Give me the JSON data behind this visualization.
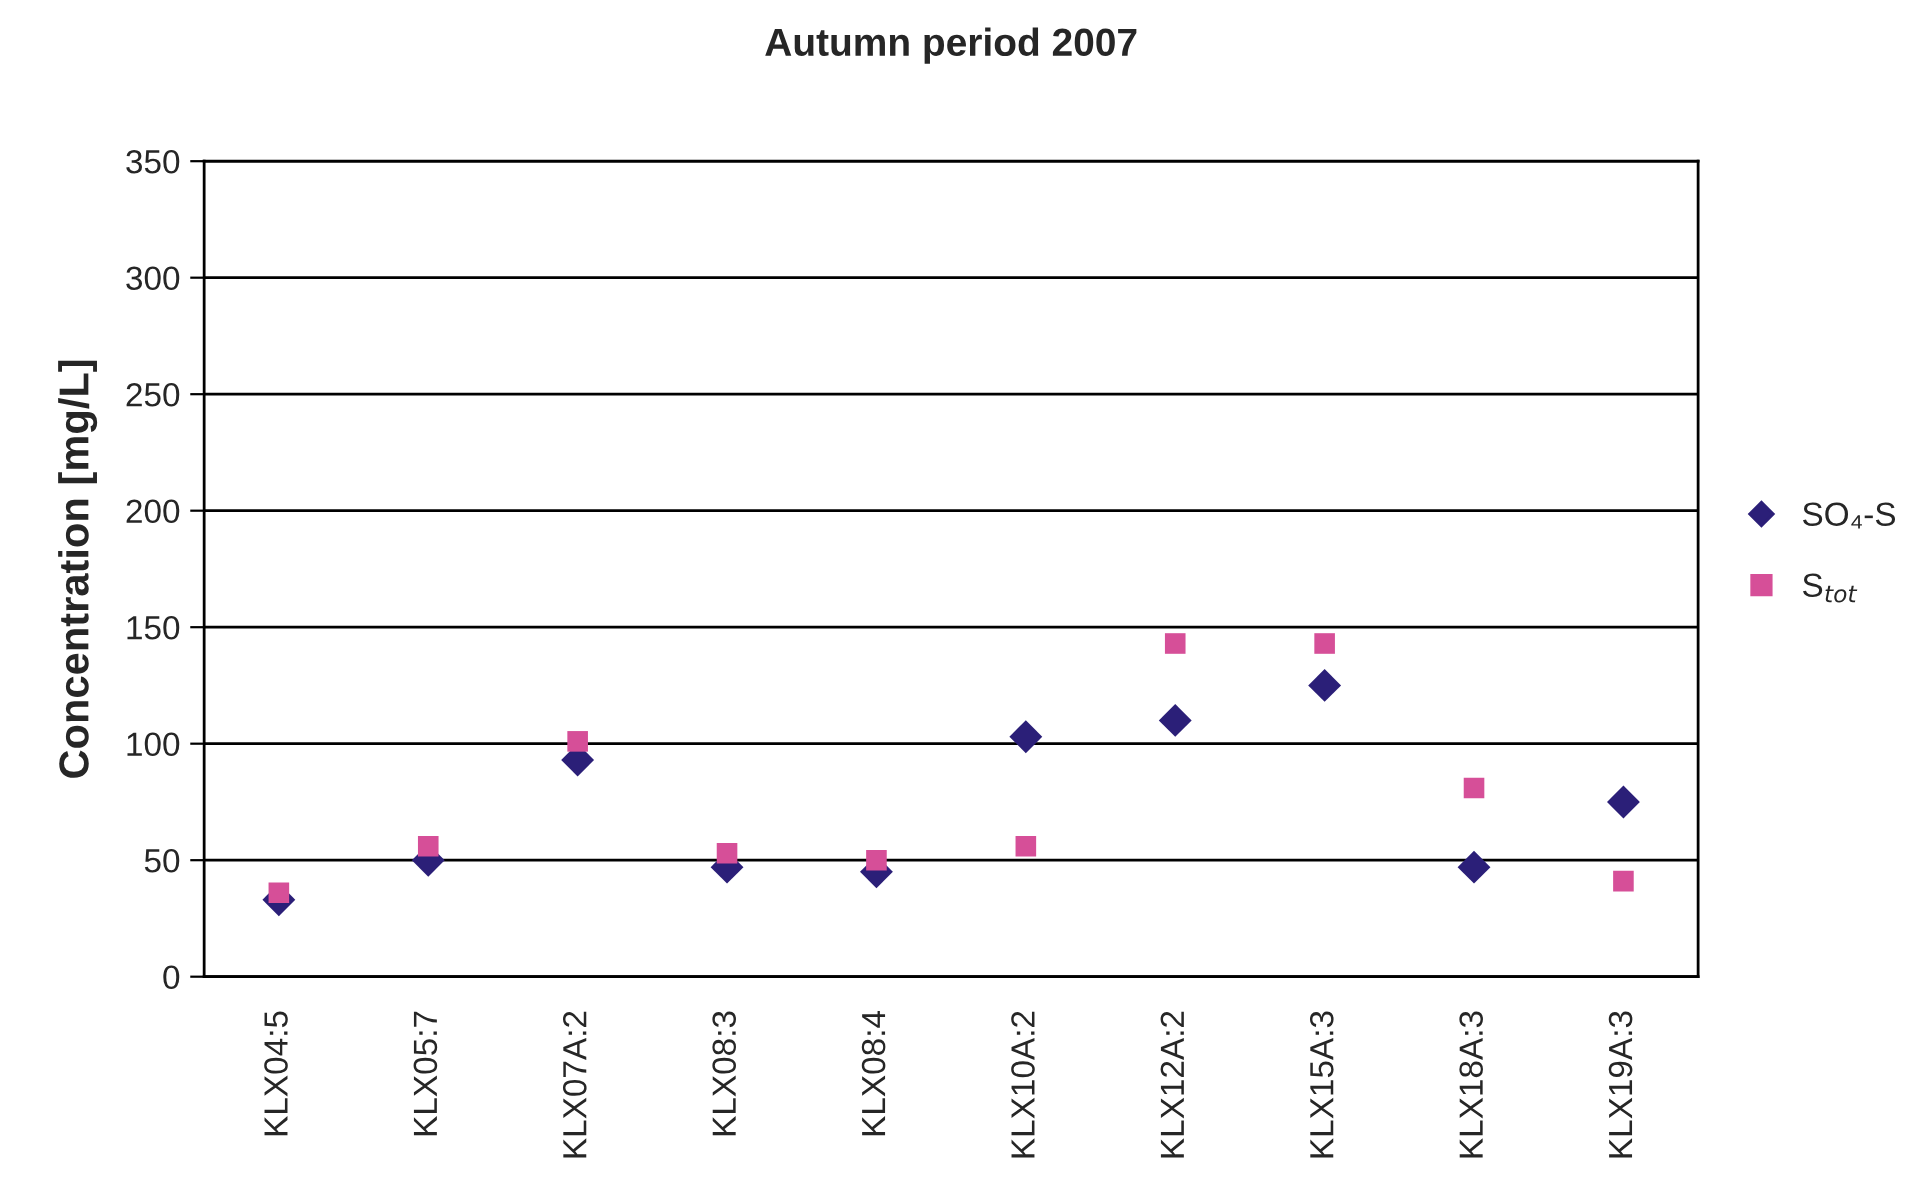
{
  "chart_data": {
    "type": "scatter",
    "title": "Autumn period 2007",
    "ylabel": "Concentration [mg/L]",
    "categories": [
      "KLX04:5",
      "KLX05:7",
      "KLX07A:2",
      "KLX08:3",
      "KLX08:4",
      "KLX10A:2",
      "KLX12A:2",
      "KLX15A:3",
      "KLX18A:3",
      "KLX19A:3"
    ],
    "series": [
      {
        "name": "SO₄-S",
        "color": "#2b1f78",
        "marker": "diamond",
        "values": [
          33,
          50,
          93,
          47,
          45,
          103,
          110,
          125,
          47,
          75
        ]
      },
      {
        "name": "S$_{tot}$",
        "color": "#d64f98",
        "marker": "square",
        "values": [
          36,
          56,
          101,
          53,
          50,
          56,
          143,
          143,
          81,
          41
        ]
      }
    ],
    "ylim": [
      0,
      350
    ],
    "yticks": [
      0,
      50,
      100,
      150,
      200,
      250,
      300,
      350
    ],
    "grid": "y",
    "legend": "right"
  }
}
